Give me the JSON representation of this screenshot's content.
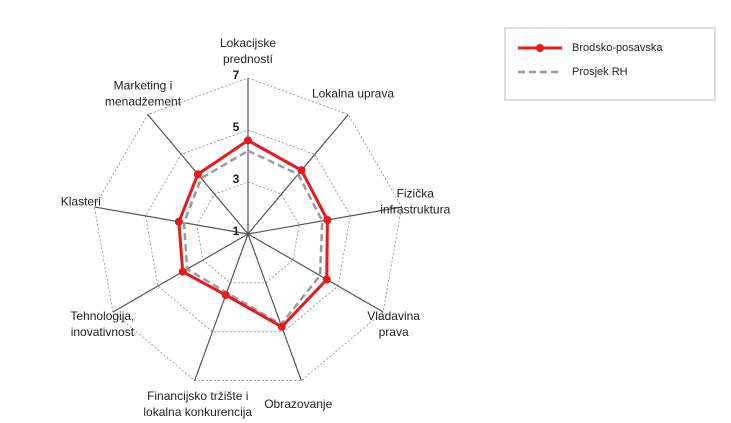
{
  "chart_data": {
    "type": "radar",
    "categories": [
      "Lokacijske\npredností",
      "Lokalna uprava",
      "Fizička\ninfrastruktura",
      "Vladavina\nprava",
      "Obrazovanje",
      "Financijsko tržište i\nlokalna konkurencija",
      "Tehnologija,\ninovativnost",
      "Klasteri",
      "Marketing i\nmenadžement"
    ],
    "series": [
      {
        "name": "Brodsko-posavska",
        "color": "#e8191e",
        "values": [
          4.6,
          4.2,
          4.1,
          4.5,
          4.8,
          3.5,
          3.9,
          3.7,
          4.0
        ]
      },
      {
        "name": "Prosjek RH",
        "color": "#9a9a9a",
        "values": [
          4.2,
          4.0,
          3.9,
          4.2,
          4.7,
          3.4,
          3.7,
          3.5,
          3.8
        ]
      }
    ],
    "ylim": [
      1,
      7
    ],
    "yticks": [
      1,
      3,
      5,
      7
    ],
    "grid": true,
    "legend": "top-right"
  }
}
